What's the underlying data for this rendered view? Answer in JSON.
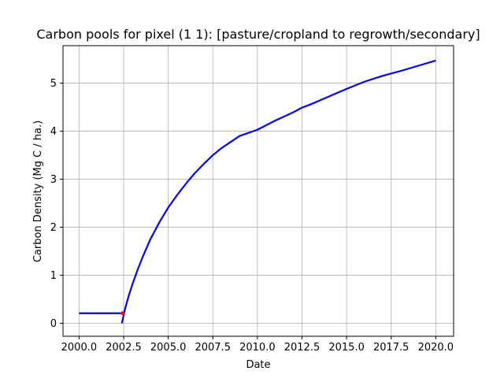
{
  "chart_data": {
    "type": "line",
    "title": "Carbon pools for pixel (1 1): [pasture/cropland to regrowth/secondary]",
    "xlabel": "Date",
    "ylabel": "Carbon Density (Mg C / ha.)",
    "xlim": [
      1999.1,
      2021.0
    ],
    "ylim": [
      -0.27,
      5.78
    ],
    "grid": true,
    "xticks": [
      2000.0,
      2002.5,
      2005.0,
      2007.5,
      2010.0,
      2012.5,
      2015.0,
      2017.5,
      2020.0
    ],
    "xtick_labels": [
      "2000.0",
      "2002.5",
      "2005.0",
      "2007.5",
      "2010.0",
      "2012.5",
      "2015.0",
      "2017.5",
      "2020.0"
    ],
    "yticks": [
      0,
      1,
      2,
      3,
      4,
      5
    ],
    "ytick_labels": [
      "0",
      "1",
      "2",
      "3",
      "4",
      "5"
    ],
    "series": [
      {
        "color": "#0000ff",
        "x": [
          2000.0,
          2002.4
        ],
        "y": [
          0.21,
          0.21
        ]
      },
      {
        "color": "#0000ff",
        "x": [
          2002.4,
          2002.6,
          2002.8,
          2003.0,
          2003.3,
          2003.6,
          2004.0,
          2004.5,
          2005.0,
          2005.5,
          2006.0,
          2006.5,
          2007.0,
          2007.5,
          2008.0,
          2009.0,
          2010.0,
          2011.0,
          2012.0,
          2012.5,
          2013.0,
          2014.0,
          2015.0,
          2016.0,
          2017.0,
          2018.0,
          2019.0,
          2020.0
        ],
        "y": [
          0.0,
          0.33,
          0.59,
          0.82,
          1.13,
          1.41,
          1.75,
          2.1,
          2.41,
          2.67,
          2.91,
          3.13,
          3.32,
          3.5,
          3.65,
          3.9,
          4.03,
          4.22,
          4.39,
          4.49,
          4.56,
          4.72,
          4.88,
          5.03,
          5.15,
          5.25,
          5.36,
          5.47
        ]
      }
    ],
    "markers": [
      {
        "color": "#ff0000",
        "x": 2002.45,
        "y": 0.21
      }
    ]
  }
}
